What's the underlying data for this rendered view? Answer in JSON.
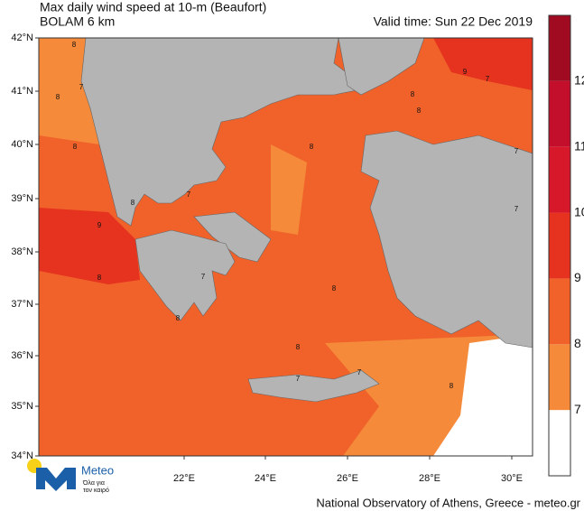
{
  "header": {
    "title": "Max daily wind speed at 10-m (Beaufort)",
    "model": "BOLAM 6 km",
    "valid_time": "Valid time: Sun 22 Dec 2019"
  },
  "map": {
    "lat_labels": [
      "42°N",
      "41°N",
      "40°N",
      "39°N",
      "38°N",
      "37°N",
      "36°N",
      "35°N",
      "34°N"
    ],
    "lon_labels": [
      "22°E",
      "24°E",
      "26°E",
      "28°E",
      "30°E"
    ],
    "contour_labels": [
      "8",
      "8",
      "7",
      "8",
      "9",
      "8",
      "7",
      "7",
      "8",
      "9",
      "8",
      "8",
      "7",
      "8",
      "8",
      "8",
      "7",
      "7",
      "8",
      "7",
      "7",
      "8"
    ]
  },
  "colorbar": {
    "levels": [
      7,
      8,
      9,
      10,
      11,
      12
    ],
    "colors": [
      "#ffffff",
      "#f58a3a",
      "#f0622a",
      "#e5331f",
      "#d7172a",
      "#c40f2c",
      "#a00b22"
    ]
  },
  "logo": {
    "name": "Meteo",
    "tagline_1": "Όλα για",
    "tagline_2": "τον καιρό"
  },
  "footer": "National Observatory of Athens, Greece - meteo.gr"
}
